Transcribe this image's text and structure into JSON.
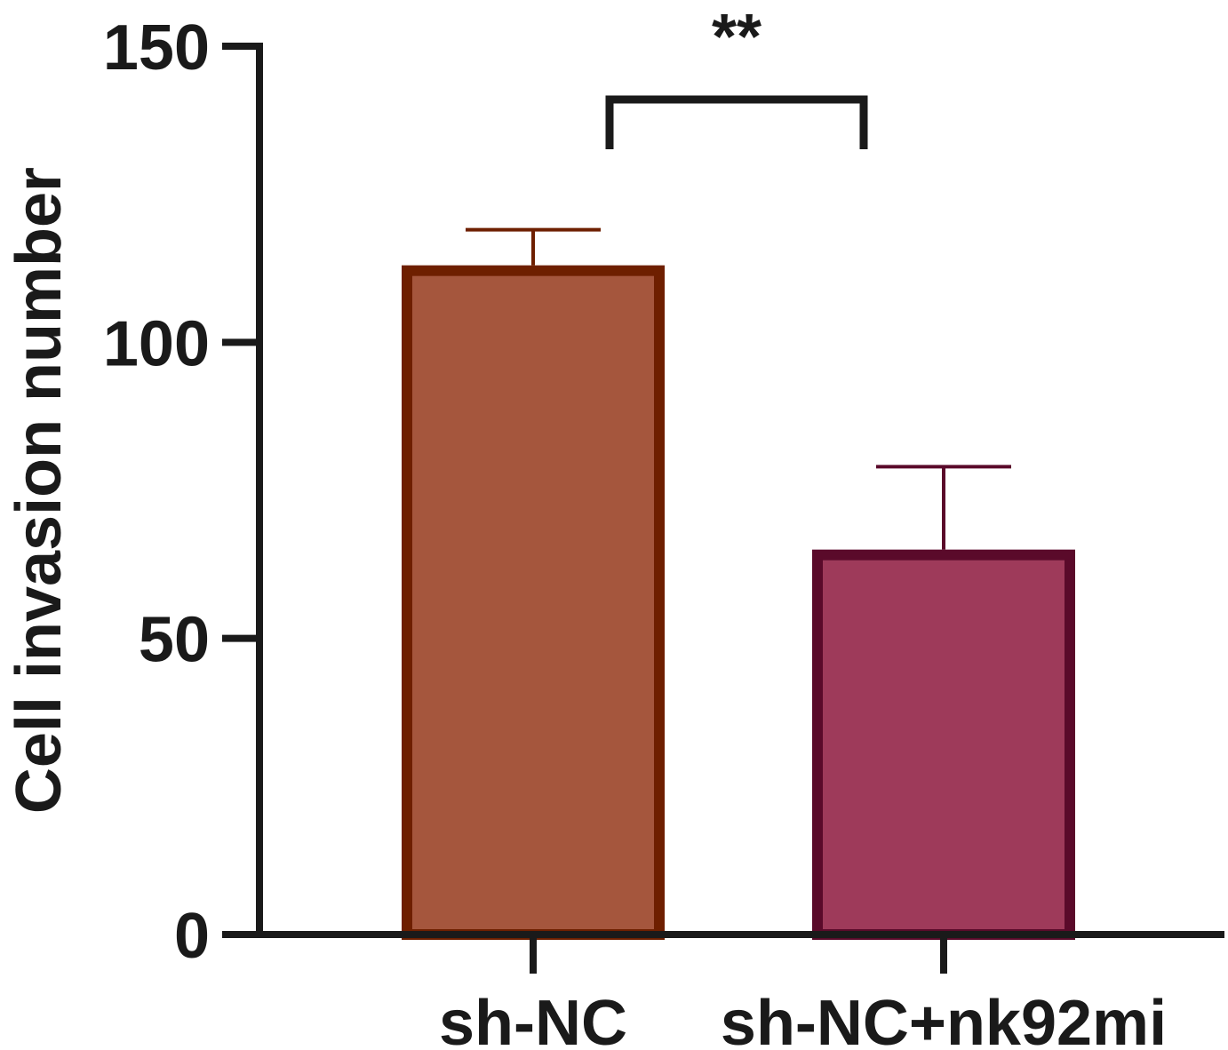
{
  "chart_data": {
    "type": "bar",
    "title": "",
    "xlabel": "",
    "ylabel": "Cell invasion number",
    "categories": [
      "sh-NC",
      "sh-NC+nk92mi"
    ],
    "values": [
      113,
      65
    ],
    "errors": [
      6,
      14
    ],
    "ylim": [
      0,
      150
    ],
    "yticks": [
      "0",
      "50",
      "100",
      "150"
    ],
    "grid": false,
    "legend": "none",
    "colors": {
      "fills": [
        "#a5563d",
        "#9e3a5a"
      ],
      "edges": [
        "#6e1f00",
        "#5a0a2a"
      ],
      "axis": "#1a1a1a"
    },
    "annotations": [
      {
        "text": "**",
        "from": 0,
        "to": 1
      }
    ]
  }
}
